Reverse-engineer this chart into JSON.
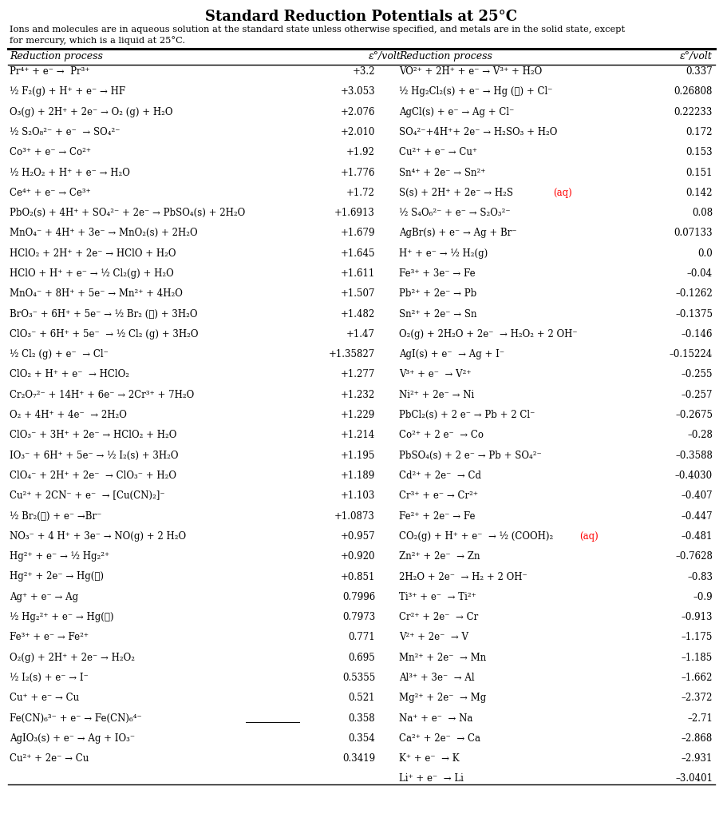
{
  "title": "Standard Reduction Potentials at 25°C",
  "subtitle1": "Ions and molecules are in aqueous solution at the standard state unless otherwise specified, and metals are in the solid state, except",
  "subtitle2": "for mercury, which is a liquid at 25°C.",
  "col_header_1": "Reduction process",
  "col_header_2": "ε°/volt",
  "col_header_3": "Reduction process",
  "col_header_4": "ε°/volt",
  "left_reactions": [
    "Pr⁴⁺ + e⁻ →  Pr³⁺",
    "½ F₂(g) + H⁺ + e⁻ → HF",
    "O₃(g) + 2H⁺ + 2e⁻ → O₂ (g) + H₂O",
    "½ S₂O₈²⁻ + e⁻  → SO₄²⁻",
    "Co³⁺ + e⁻ → Co²⁺",
    "½ H₂O₂ + H⁺ + e⁻ → H₂O",
    "Ce⁴⁺ + e⁻ → Ce³⁺",
    "PbO₂(s) + 4H⁺ + SO₄²⁻ + 2e⁻ → PbSO₄(s) + 2H₂O",
    "MnO₄⁻ + 4H⁺ + 3e⁻ → MnO₂(s) + 2H₂O",
    "HClO₂ + 2H⁺ + 2e⁻ → HClO + H₂O",
    "HClO + H⁺ + e⁻ → ½ Cl₂(g) + H₂O",
    "MnO₄⁻ + 8H⁺ + 5e⁻ → Mn²⁺ + 4H₂O",
    "BrO₃⁻ + 6H⁺ + 5e⁻ → ½ Br₂ (ℓ) + 3H₂O",
    "ClO₃⁻ + 6H⁺ + 5e⁻  → ½ Cl₂ (g) + 3H₂O",
    "½ Cl₂ (g) + e⁻  → Cl⁻",
    "ClO₂ + H⁺ + e⁻  → HClO₂",
    "Cr₂O₇²⁻ + 14H⁺ + 6e⁻ → 2Cr³⁺ + 7H₂O",
    "O₂ + 4H⁺ + 4e⁻  → 2H₂O",
    "ClO₃⁻ + 3H⁺ + 2e⁻ → HClO₂ + H₂O",
    "IO₃⁻ + 6H⁺ + 5e⁻ → ½ I₂(s) + 3H₂O",
    "ClO₄⁻ + 2H⁺ + 2e⁻  → ClO₃⁻ + H₂O",
    "Cu²⁺ + 2CN⁻ + e⁻  → [Cu(CN)₂]⁻",
    "½ Br₂(ℓ) + e⁻ →Br⁻",
    "NO₃⁻ + 4 H⁺ + 3e⁻ → NO(g) + 2 H₂O",
    "Hg²⁺ + e⁻ → ½ Hg₂²⁺",
    "Hg²⁺ + 2e⁻ → Hg(ℓ)",
    "Ag⁺ + e⁻ → Ag",
    "½ Hg₂²⁺ + e⁻ → Hg(ℓ)",
    "Fe³⁺ + e⁻ → Fe²⁺",
    "O₂(g) + 2H⁺ + 2e⁻ → H₂O₂",
    "½ I₂(s) + e⁻ → I⁻",
    "Cu⁺ + e⁻ → Cu",
    "Fe(CN)₆³⁻ + e⁻ → Fe(CN)₆⁴⁻",
    "AgIO₃(s) + e⁻ → Ag + IO₃⁻",
    "Cu²⁺ + 2e⁻ → Cu"
  ],
  "left_values": [
    "+3.2",
    "+3.053",
    "+2.076",
    "+2.010",
    "+1.92",
    "+1.776",
    "+1.72",
    "+1.6913",
    "+1.679",
    "+1.645",
    "+1.611",
    "+1.507",
    "+1.482",
    "+1.47",
    "+1.35827",
    "+1.277",
    "+1.232",
    "+1.229",
    "+1.214",
    "+1.195",
    "+1.189",
    "+1.103",
    "+1.0873",
    "+0.957",
    "+0.920",
    "+0.851",
    "0.7996",
    "0.7973",
    "0.771",
    "0.695",
    "0.5355",
    "0.521",
    "0.358",
    "0.354",
    "0.3419"
  ],
  "right_reactions": [
    "VO²⁺ + 2H⁺ + e⁻ → V³⁺ + H₂O",
    "½ Hg₂Cl₂(s) + e⁻ → Hg (ℓ) + Cl⁻",
    "AgCl(s) + e⁻ → Ag + Cl⁻",
    "SO₄²⁻+4H⁺+ 2e⁻ → H₂SO₃ + H₂O",
    "Cu²⁺ + e⁻ → Cu⁺",
    "Sn⁴⁺ + 2e⁻ → Sn²⁺",
    "S(s) + 2H⁺ + 2e⁻ → H₂S(aq)",
    "½ S₄O₆²⁻ + e⁻ → S₂O₃²⁻",
    "AgBr(s) + e⁻ → Ag + Br⁻",
    "H⁺ + e⁻ → ½ H₂(g)",
    "Fe³⁺ + 3e⁻ → Fe",
    "Pb²⁺ + 2e⁻ → Pb",
    "Sn²⁺ + 2e⁻ → Sn",
    "O₂(g) + 2H₂O + 2e⁻  → H₂O₂ + 2 OH⁻",
    "AgI(s) + e⁻  → Ag + I⁻",
    "V³⁺ + e⁻  → V²⁺",
    "Ni²⁺ + 2e⁻ → Ni",
    "PbCl₂(s) + 2 e⁻ → Pb + 2 Cl⁻",
    "Co²⁺ + 2 e⁻  → Co",
    "PbSO₄(s) + 2 e⁻ → Pb + SO₄²⁻",
    "Cd²⁺ + 2e⁻  → Cd",
    "Cr³⁺ + e⁻ → Cr²⁺",
    "Fe²⁺ + 2e⁻ → Fe",
    "CO₂(g) + H⁺ + e⁻  → ½ (COOH)₂(aq)",
    "Zn²⁺ + 2e⁻  → Zn",
    "2H₂O + 2e⁻  → H₂ + 2 OH⁻",
    "Ti³⁺ + e⁻  → Ti²⁺",
    "Cr²⁺ + 2e⁻  → Cr",
    "V²⁺ + 2e⁻  → V",
    "Mn²⁺ + 2e⁻  → Mn",
    "Al³⁺ + 3e⁻  → Al",
    "Mg²⁺ + 2e⁻  → Mg",
    "Na⁺ + e⁻  → Na",
    "Ca²⁺ + 2e⁻  → Ca",
    "K⁺ + e⁻  → K",
    "Li⁺ + e⁻  → Li"
  ],
  "right_values": [
    "0.337",
    "0.26808",
    "0.22233",
    "0.172",
    "0.153",
    "0.151",
    "0.142",
    "0.08",
    "0.07133",
    "0.0",
    "–0.04",
    "–0.1262",
    "–0.1375",
    "–0.146",
    "–0.15224",
    "–0.255",
    "–0.257",
    "–0.2675",
    "–0.28",
    "–0.3588",
    "–0.4030",
    "–0.407",
    "–0.447",
    "–0.481",
    "–0.7628",
    "–0.83",
    "–0.9",
    "–0.913",
    "–1.175",
    "–1.185",
    "–1.662",
    "–2.372",
    "–2.71",
    "–2.868",
    "–2.931",
    "–3.0401"
  ],
  "h2s_prefix": "S(s) + 2H⁺ + 2e⁻ → H₂S",
  "h2s_suffix": "(aq)",
  "cooh_prefix": "CO₂(g) + H⁺ + e⁻  → ½ (COOH)₂",
  "cooh_suffix": "(aq)",
  "fe_cn_row": 32,
  "h2s_row": 6,
  "cooh_row": 23
}
